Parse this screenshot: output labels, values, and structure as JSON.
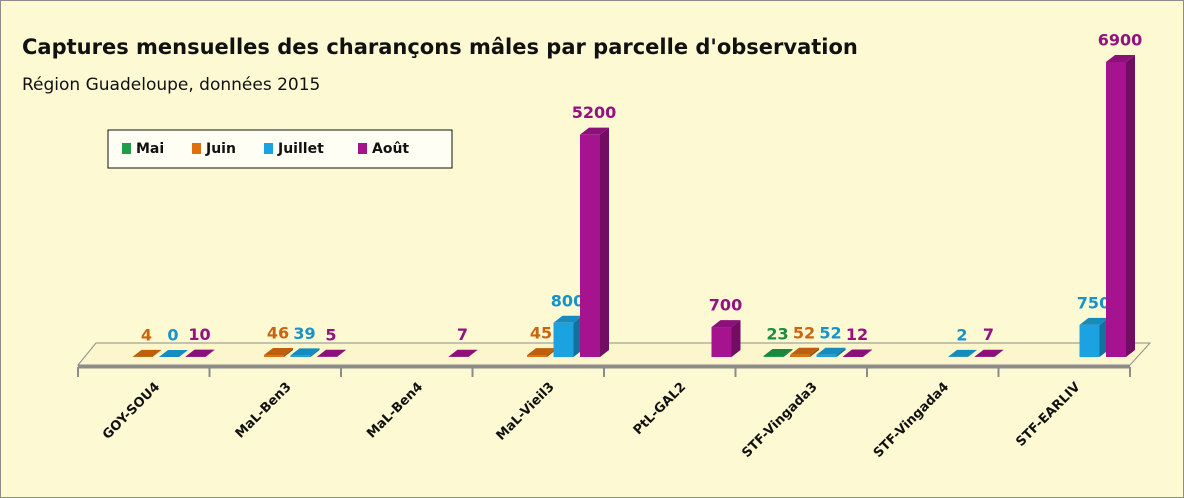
{
  "chart_data": {
    "type": "bar3d",
    "title": "Captures mensuelles des charançons mâles par parcelle d'observation",
    "subtitle": "Région Guadeloupe, données 2015",
    "categories": [
      "GOY-SOU4",
      "MaL-Ben3",
      "MaL-Ben4",
      "MaL-Vieil3",
      "PtL-GAL2",
      "STF-Vingada3",
      "STF-Vingada4",
      "STF-EARLIV"
    ],
    "series": [
      {
        "name": "Mai",
        "color": "#1e9e4a",
        "values": [
          null,
          null,
          null,
          null,
          null,
          23,
          null,
          null
        ]
      },
      {
        "name": "Juin",
        "color": "#e0700f",
        "values": [
          4,
          46,
          null,
          45,
          null,
          52,
          null,
          null
        ]
      },
      {
        "name": "Juillet",
        "color": "#1aa3e0",
        "values": [
          0,
          39,
          null,
          800,
          null,
          52,
          2,
          750
        ]
      },
      {
        "name": "Août",
        "color": "#a5138f",
        "values": [
          10,
          5,
          7,
          5200,
          700,
          12,
          7,
          6900
        ]
      }
    ],
    "legend": "upper left"
  }
}
